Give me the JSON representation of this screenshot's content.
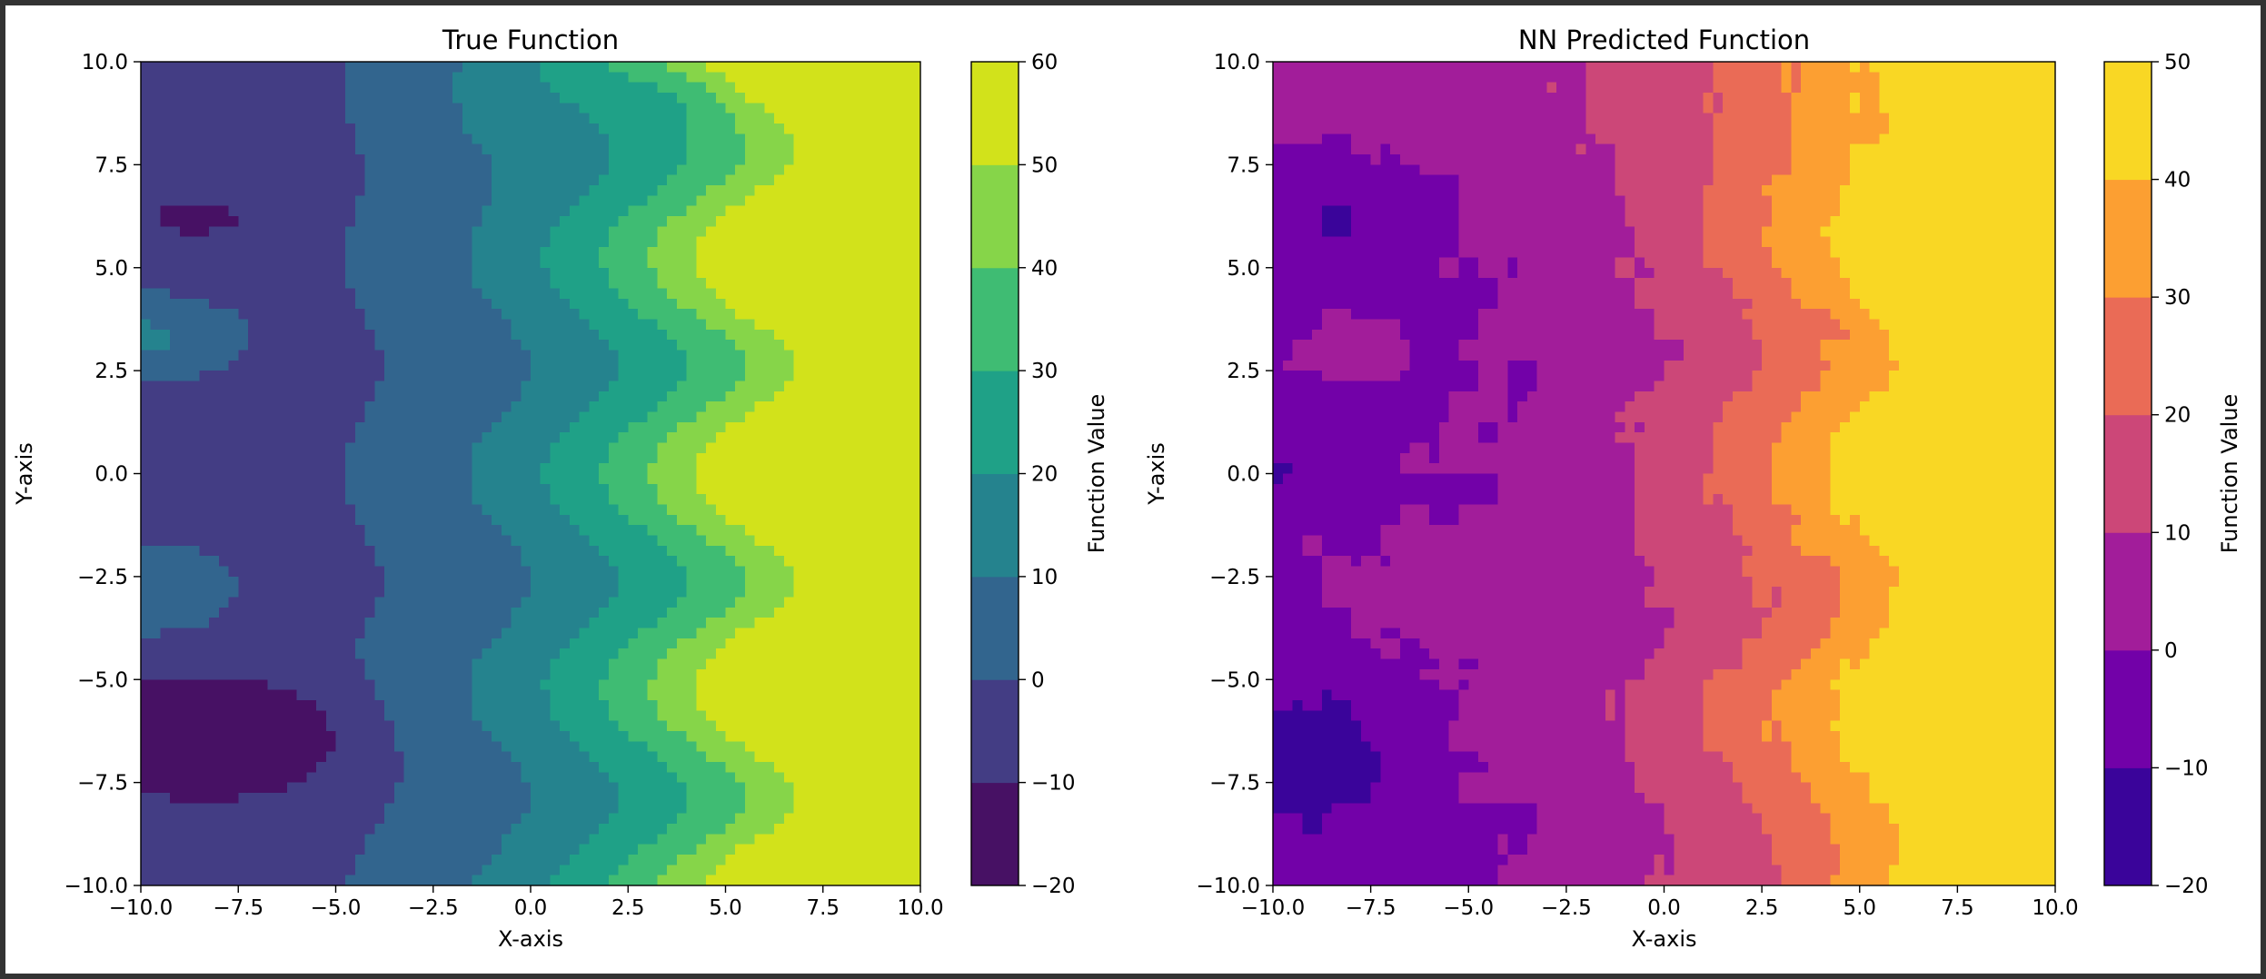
{
  "figure": {
    "background": "#ffffff",
    "frame_color": "#333333"
  },
  "chart_data": [
    {
      "type": "contour",
      "title": "True Function",
      "xlabel": "X-axis",
      "ylabel": "Y-axis",
      "xlim": [
        -10,
        10
      ],
      "ylim": [
        -10,
        10
      ],
      "xticks": [
        -10,
        -7.5,
        -5,
        -2.5,
        0,
        2.5,
        5,
        7.5,
        10
      ],
      "yticks": [
        -10,
        -7.5,
        -5,
        -2.5,
        0,
        2.5,
        5,
        7.5,
        10
      ],
      "xtick_labels": [
        "−10.0",
        "−7.5",
        "−5.0",
        "−2.5",
        "0.0",
        "2.5",
        "5.0",
        "7.5",
        "10.0"
      ],
      "ytick_labels": [
        "−10.0",
        "−7.5",
        "−5.0",
        "−2.5",
        "0.0",
        "2.5",
        "5.0",
        "7.5",
        "10.0"
      ],
      "grid": false,
      "colormap": "viridis",
      "levels": [
        -20,
        -10,
        0,
        10,
        20,
        30,
        40,
        50,
        60
      ],
      "level_labels": [
        "−20",
        "−10",
        "0",
        "10",
        "20",
        "30",
        "40",
        "50",
        "60"
      ],
      "level_colors": [
        "#471164",
        "#433d84",
        "#32658e",
        "#25838e",
        "#1fa187",
        "#3fbc73",
        "#86d549",
        "#d2e21b"
      ],
      "colorbar_label": "Function Value",
      "model": "true"
    },
    {
      "type": "contour",
      "title": "NN Predicted Function",
      "xlabel": "X-axis",
      "ylabel": "Y-axis",
      "xlim": [
        -10,
        10
      ],
      "ylim": [
        -10,
        10
      ],
      "xticks": [
        -10,
        -7.5,
        -5,
        -2.5,
        0,
        2.5,
        5,
        7.5,
        10
      ],
      "yticks": [
        -10,
        -7.5,
        -5,
        -2.5,
        0,
        2.5,
        5,
        7.5,
        10
      ],
      "xtick_labels": [
        "−10.0",
        "−7.5",
        "−5.0",
        "−2.5",
        "0.0",
        "2.5",
        "5.0",
        "7.5",
        "10.0"
      ],
      "ytick_labels": [
        "−10.0",
        "−7.5",
        "−5.0",
        "−2.5",
        "0.0",
        "2.5",
        "5.0",
        "7.5",
        "10.0"
      ],
      "grid": false,
      "colormap": "plasma",
      "levels": [
        -20,
        -10,
        0,
        10,
        20,
        30,
        40,
        50
      ],
      "level_labels": [
        "−20",
        "−10",
        "0",
        "10",
        "20",
        "30",
        "40",
        "50"
      ],
      "level_colors": [
        "#3a049a",
        "#7201a8",
        "#a21d9a",
        "#cc4778",
        "#ea6b56",
        "#fc9f32",
        "#f9d724"
      ],
      "colorbar_label": "Function Value",
      "model": "predicted"
    }
  ]
}
